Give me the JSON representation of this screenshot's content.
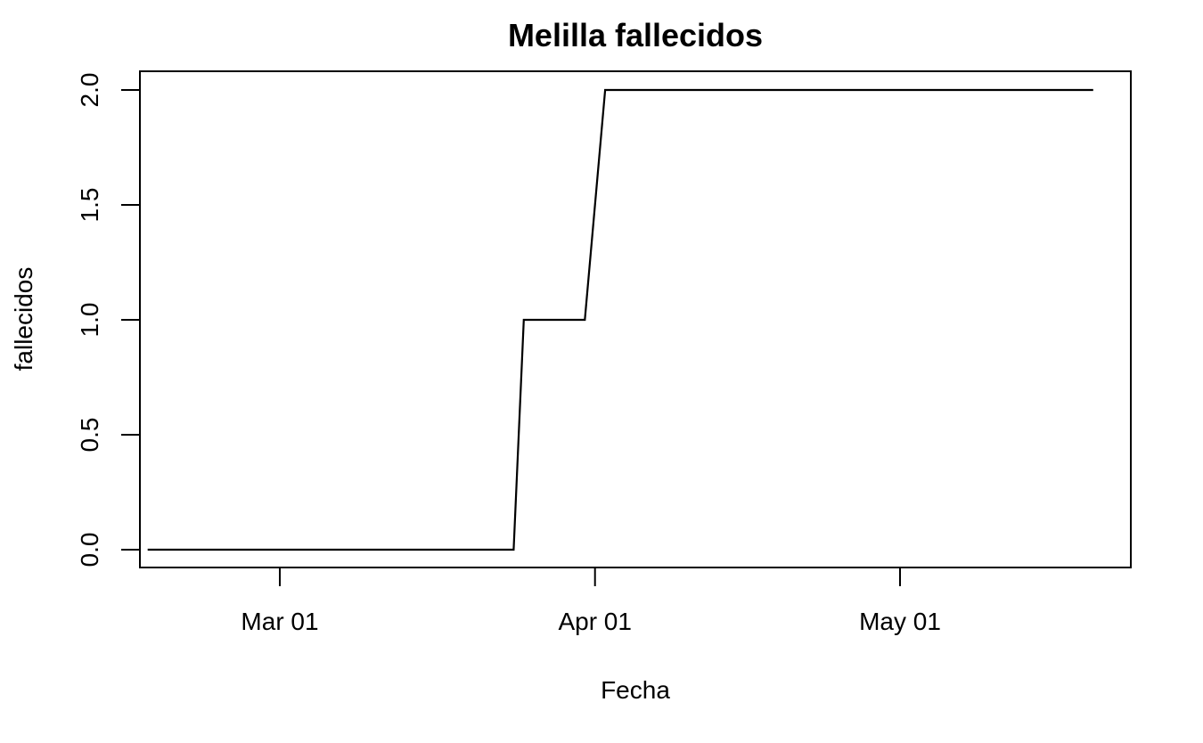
{
  "chart_data": {
    "type": "line",
    "title": "Melilla fallecidos",
    "xlabel": "Fecha",
    "ylabel": "fallecidos",
    "x_ticks": [
      "2020-03-01",
      "2020-04-01",
      "2020-05-01"
    ],
    "x_tick_labels": [
      "Mar 01",
      "Apr 01",
      "May 01"
    ],
    "y_ticks": [
      0.0,
      0.5,
      1.0,
      1.5,
      2.0
    ],
    "y_tick_labels": [
      "0.0",
      "0.5",
      "1.0",
      "1.5",
      "2.0"
    ],
    "xlim": [
      "2020-02-14",
      "2020-05-23"
    ],
    "ylim": [
      0,
      2
    ],
    "grid": false,
    "series": [
      {
        "points": [
          [
            "2020-02-17",
            0
          ],
          [
            "2020-03-24",
            0
          ],
          [
            "2020-03-25",
            1
          ],
          [
            "2020-03-31",
            1
          ],
          [
            "2020-04-02",
            2
          ],
          [
            "2020-05-20",
            2
          ]
        ]
      }
    ]
  }
}
